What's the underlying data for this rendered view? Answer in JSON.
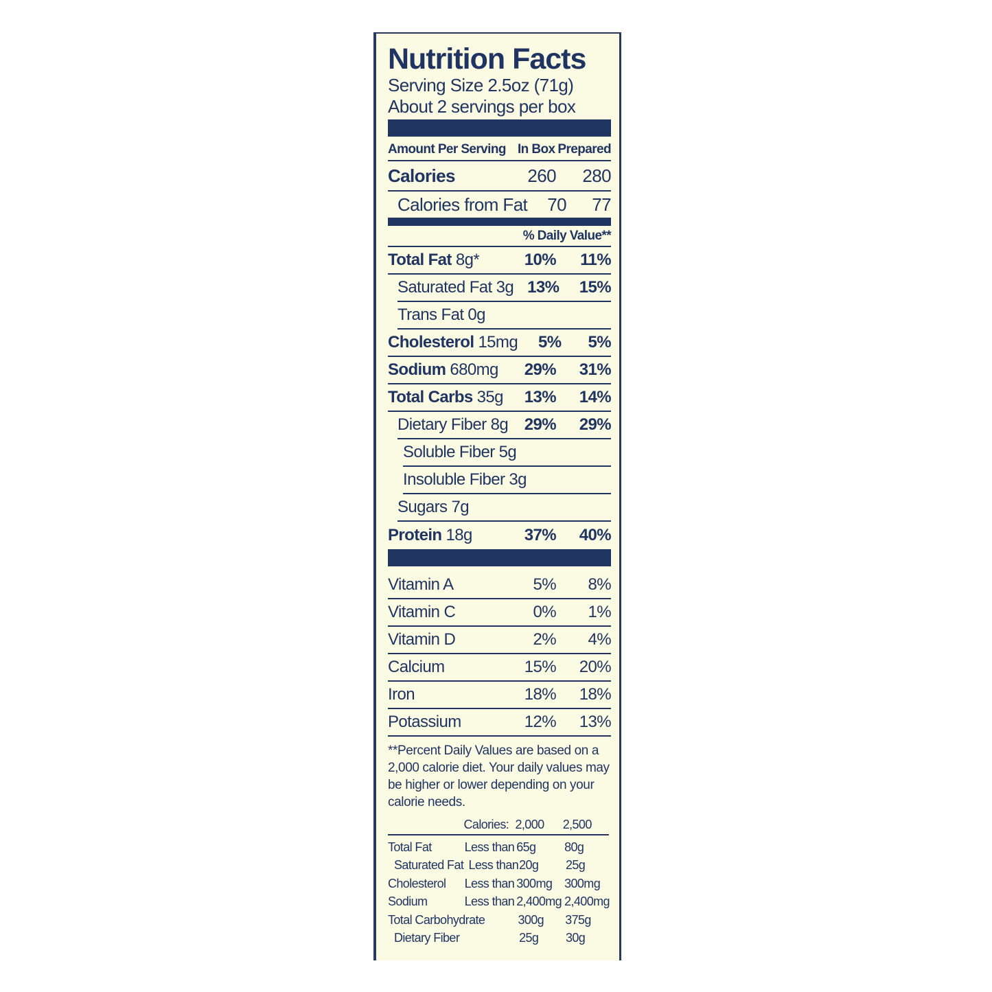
{
  "title": "Nutrition Facts",
  "serving_size": "Serving Size 2.5oz (71g)",
  "servings": "About 2 servings per box",
  "header": {
    "amount": "Amount Per Serving",
    "col1": "In Box",
    "col2": "Prepared"
  },
  "calories": {
    "label": "Calories",
    "in_box": "260",
    "prepared": "280"
  },
  "calories_fat": {
    "label": "Calories from Fat",
    "in_box": "70",
    "prepared": "77"
  },
  "dv_header": "% Daily Value**",
  "nutrients": [
    {
      "name": "Total Fat",
      "amount": "8g*",
      "in_box": "10%",
      "prepared": "11%",
      "bold": true,
      "indent": 0
    },
    {
      "name": "Saturated Fat",
      "amount": "3g",
      "in_box": "13%",
      "prepared": "15%",
      "bold": false,
      "indent": 1
    },
    {
      "name": "Trans Fat",
      "amount": "0g",
      "in_box": "",
      "prepared": "",
      "bold": false,
      "indent": 1
    },
    {
      "name": "Cholesterol",
      "amount": "15mg",
      "in_box": "5%",
      "prepared": "5%",
      "bold": true,
      "indent": 0
    },
    {
      "name": "Sodium",
      "amount": "680mg",
      "in_box": "29%",
      "prepared": "31%",
      "bold": true,
      "indent": 0
    },
    {
      "name": "Total Carbs",
      "amount": "35g",
      "in_box": "13%",
      "prepared": "14%",
      "bold": true,
      "indent": 0
    },
    {
      "name": "Dietary Fiber",
      "amount": "8g",
      "in_box": "29%",
      "prepared": "29%",
      "bold": false,
      "indent": 1
    },
    {
      "name": "Soluble Fiber",
      "amount": "5g",
      "in_box": "",
      "prepared": "",
      "bold": false,
      "indent": 2
    },
    {
      "name": "Insoluble Fiber",
      "amount": "3g",
      "in_box": "",
      "prepared": "",
      "bold": false,
      "indent": 2
    },
    {
      "name": "Sugars",
      "amount": "7g",
      "in_box": "",
      "prepared": "",
      "bold": false,
      "indent": 1
    },
    {
      "name": "Protein",
      "amount": "18g",
      "in_box": "37%",
      "prepared": "40%",
      "bold": true,
      "indent": 0
    }
  ],
  "vitamins": [
    {
      "name": "Vitamin A",
      "in_box": "5%",
      "prepared": "8%"
    },
    {
      "name": "Vitamin C",
      "in_box": "0%",
      "prepared": "1%"
    },
    {
      "name": "Vitamin D",
      "in_box": "2%",
      "prepared": "4%"
    },
    {
      "name": "Calcium",
      "in_box": "15%",
      "prepared": "20%"
    },
    {
      "name": "Iron",
      "in_box": "18%",
      "prepared": "18%"
    },
    {
      "name": "Potassium",
      "in_box": "12%",
      "prepared": "13%"
    }
  ],
  "footnote": "**Percent Daily Values are based on a 2,000 calorie diet. Your daily values may be higher or lower depending on your calorie needs.",
  "dv_table": {
    "header": [
      "",
      "Calories:",
      "2,000",
      "2,500"
    ],
    "rows": [
      [
        "Total Fat",
        "Less than",
        "65g",
        "80g"
      ],
      [
        " Saturated Fat",
        "Less than",
        "20g",
        "25g"
      ],
      [
        "Cholesterol",
        "Less than",
        "300mg",
        "300mg"
      ],
      [
        "Sodium",
        "Less than",
        "2,400mg",
        "2,400mg"
      ],
      [
        "Total Carbohydrate",
        "",
        "300g",
        "375g"
      ],
      [
        " Dietary Fiber",
        "",
        "25g",
        "30g"
      ]
    ]
  },
  "colors": {
    "ink": "#1f3461",
    "background": "#fbfbe4"
  }
}
